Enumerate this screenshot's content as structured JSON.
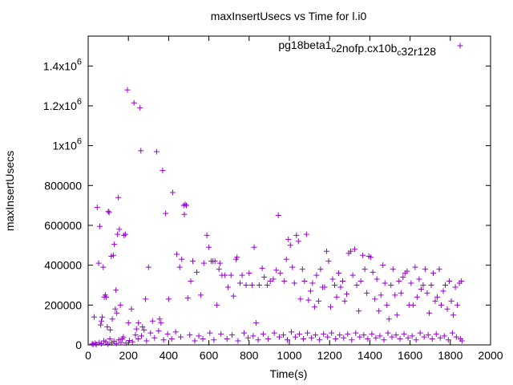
{
  "chart_data": {
    "type": "scatter",
    "title": "maxInsertUsecs vs Time for l.i0",
    "xlabel": "Time(s)",
    "ylabel": "maxInsertUsecs",
    "xlim": [
      0,
      2000
    ],
    "ylim": [
      0,
      1550000
    ],
    "grid": false,
    "legend_position": "top-right",
    "x_ticks": [
      {
        "value": 0,
        "label": "0"
      },
      {
        "value": 200,
        "label": "200"
      },
      {
        "value": 400,
        "label": "400"
      },
      {
        "value": 600,
        "label": "600"
      },
      {
        "value": 800,
        "label": "800"
      },
      {
        "value": 1000,
        "label": "1000"
      },
      {
        "value": 1200,
        "label": "1200"
      },
      {
        "value": 1400,
        "label": "1400"
      },
      {
        "value": 1600,
        "label": "1600"
      },
      {
        "value": 1800,
        "label": "1800"
      },
      {
        "value": 2000,
        "label": "2000"
      }
    ],
    "y_ticks": [
      {
        "value": 0,
        "label": "0",
        "exp": ""
      },
      {
        "value": 200000,
        "label": "200000",
        "exp": ""
      },
      {
        "value": 400000,
        "label": "400000",
        "exp": ""
      },
      {
        "value": 600000,
        "label": "600000",
        "exp": ""
      },
      {
        "value": 800000,
        "label": "800000",
        "exp": ""
      },
      {
        "value": 1000000,
        "label": "1x10",
        "exp": "6"
      },
      {
        "value": 1200000,
        "label": "1.2x10",
        "exp": "6"
      },
      {
        "value": 1400000,
        "label": "1.4x10",
        "exp": "6"
      }
    ],
    "series": [
      {
        "name": "pg18beta1_o2nofp.cx10b_c32r128",
        "legend_parts": [
          {
            "text": "pg18beta1",
            "sub": false
          },
          {
            "text": "o",
            "sub": true
          },
          {
            "text": "2nofp.cx10b",
            "sub": false
          },
          {
            "text": "c",
            "sub": true
          },
          {
            "text": "32r128",
            "sub": false
          }
        ],
        "color": "#9400d3",
        "marker": "plus",
        "points": [
          [
            30,
            140000
          ],
          [
            45,
            690000
          ],
          [
            52,
            410000
          ],
          [
            58,
            595000
          ],
          [
            62,
            100000
          ],
          [
            66,
            120000
          ],
          [
            70,
            140000
          ],
          [
            75,
            390000
          ],
          [
            80,
            240000
          ],
          [
            85,
            250000
          ],
          [
            90,
            240000
          ],
          [
            95,
            90000
          ],
          [
            100,
            670000
          ],
          [
            104,
            665000
          ],
          [
            110,
            75000
          ],
          [
            115,
            445000
          ],
          [
            120,
            130000
          ],
          [
            125,
            450000
          ],
          [
            130,
            505000
          ],
          [
            135,
            180000
          ],
          [
            138,
            275000
          ],
          [
            142,
            160000
          ],
          [
            146,
            555000
          ],
          [
            150,
            740000
          ],
          [
            155,
            580000
          ],
          [
            160,
            200000
          ],
          [
            170,
            30000
          ],
          [
            178,
            550000
          ],
          [
            185,
            555000
          ],
          [
            195,
            1280000
          ],
          [
            200,
            110000
          ],
          [
            215,
            180000
          ],
          [
            228,
            1215000
          ],
          [
            240,
            80000
          ],
          [
            250,
            110000
          ],
          [
            258,
            1190000
          ],
          [
            262,
            975000
          ],
          [
            270,
            90000
          ],
          [
            278,
            75000
          ],
          [
            285,
            230000
          ],
          [
            300,
            390000
          ],
          [
            320,
            120000
          ],
          [
            340,
            970000
          ],
          [
            355,
            130000
          ],
          [
            362,
            110000
          ],
          [
            370,
            875000
          ],
          [
            385,
            660000
          ],
          [
            400,
            230000
          ],
          [
            420,
            765000
          ],
          [
            440,
            455000
          ],
          [
            455,
            390000
          ],
          [
            465,
            430000
          ],
          [
            475,
            700000
          ],
          [
            478,
            655000
          ],
          [
            482,
            705000
          ],
          [
            488,
            700000
          ],
          [
            495,
            235000
          ],
          [
            510,
            320000
          ],
          [
            520,
            420000
          ],
          [
            540,
            365000
          ],
          [
            560,
            250000
          ],
          [
            575,
            410000
          ],
          [
            590,
            550000
          ],
          [
            600,
            490000
          ],
          [
            612,
            420000
          ],
          [
            620,
            420000
          ],
          [
            630,
            420000
          ],
          [
            640,
            200000
          ],
          [
            650,
            380000
          ],
          [
            655,
            410000
          ],
          [
            665,
            350000
          ],
          [
            680,
            350000
          ],
          [
            695,
            290000
          ],
          [
            710,
            350000
          ],
          [
            722,
            245000
          ],
          [
            735,
            430000
          ],
          [
            740,
            440000
          ],
          [
            755,
            310000
          ],
          [
            765,
            350000
          ],
          [
            785,
            300000
          ],
          [
            800,
            360000
          ],
          [
            815,
            300000
          ],
          [
            825,
            490000
          ],
          [
            835,
            110000
          ],
          [
            850,
            300000
          ],
          [
            865,
            385000
          ],
          [
            875,
            340000
          ],
          [
            890,
            300000
          ],
          [
            905,
            320000
          ],
          [
            920,
            330000
          ],
          [
            935,
            375000
          ],
          [
            945,
            650000
          ],
          [
            955,
            360000
          ],
          [
            975,
            320000
          ],
          [
            985,
            430000
          ],
          [
            995,
            530000
          ],
          [
            1005,
            500000
          ],
          [
            1015,
            390000
          ],
          [
            1025,
            310000
          ],
          [
            1035,
            550000
          ],
          [
            1045,
            520000
          ],
          [
            1055,
            230000
          ],
          [
            1065,
            380000
          ],
          [
            1075,
            320000
          ],
          [
            1085,
            555000
          ],
          [
            1095,
            225000
          ],
          [
            1105,
            270000
          ],
          [
            1115,
            310000
          ],
          [
            1125,
            190000
          ],
          [
            1135,
            350000
          ],
          [
            1145,
            220000
          ],
          [
            1155,
            380000
          ],
          [
            1165,
            290000
          ],
          [
            1175,
            290000
          ],
          [
            1185,
            470000
          ],
          [
            1195,
            420000
          ],
          [
            1205,
            190000
          ],
          [
            1215,
            330000
          ],
          [
            1225,
            300000
          ],
          [
            1235,
            240000
          ],
          [
            1245,
            360000
          ],
          [
            1255,
            290000
          ],
          [
            1265,
            320000
          ],
          [
            1275,
            220000
          ],
          [
            1285,
            255000
          ],
          [
            1295,
            460000
          ],
          [
            1305,
            470000
          ],
          [
            1315,
            350000
          ],
          [
            1325,
            480000
          ],
          [
            1335,
            300000
          ],
          [
            1345,
            170000
          ],
          [
            1355,
            320000
          ],
          [
            1365,
            450000
          ],
          [
            1375,
            380000
          ],
          [
            1385,
            260000
          ],
          [
            1395,
            445000
          ],
          [
            1405,
            440000
          ],
          [
            1415,
            365000
          ],
          [
            1425,
            230000
          ],
          [
            1435,
            330000
          ],
          [
            1445,
            170000
          ],
          [
            1455,
            250000
          ],
          [
            1465,
            400000
          ],
          [
            1475,
            310000
          ],
          [
            1485,
            200000
          ],
          [
            1495,
            130000
          ],
          [
            1505,
            300000
          ],
          [
            1515,
            380000
          ],
          [
            1525,
            250000
          ],
          [
            1535,
            150000
          ],
          [
            1545,
            320000
          ],
          [
            1555,
            260000
          ],
          [
            1565,
            340000
          ],
          [
            1575,
            360000
          ],
          [
            1585,
            370000
          ],
          [
            1595,
            200000
          ],
          [
            1605,
            310000
          ],
          [
            1615,
            200000
          ],
          [
            1625,
            390000
          ],
          [
            1635,
            240000
          ],
          [
            1645,
            330000
          ],
          [
            1655,
            280000
          ],
          [
            1665,
            300000
          ],
          [
            1675,
            380000
          ],
          [
            1685,
            260000
          ],
          [
            1695,
            160000
          ],
          [
            1705,
            300000
          ],
          [
            1715,
            360000
          ],
          [
            1725,
            220000
          ],
          [
            1735,
            240000
          ],
          [
            1745,
            380000
          ],
          [
            1755,
            200000
          ],
          [
            1765,
            270000
          ],
          [
            1775,
            300000
          ],
          [
            1785,
            180000
          ],
          [
            1795,
            320000
          ],
          [
            1805,
            220000
          ],
          [
            1815,
            150000
          ],
          [
            1825,
            290000
          ],
          [
            1835,
            200000
          ],
          [
            1845,
            310000
          ],
          [
            1855,
            320000
          ],
          [
            20,
            5000
          ],
          [
            25,
            3000
          ],
          [
            35,
            8000
          ],
          [
            40,
            2000
          ],
          [
            55,
            12000
          ],
          [
            65,
            6000
          ],
          [
            78,
            20000
          ],
          [
            88,
            15000
          ],
          [
            98,
            4000
          ],
          [
            108,
            30000
          ],
          [
            118,
            10000
          ],
          [
            128,
            18000
          ],
          [
            140,
            7000
          ],
          [
            152,
            25000
          ],
          [
            163,
            12000
          ],
          [
            175,
            40000
          ],
          [
            188,
            9000
          ],
          [
            205,
            22000
          ],
          [
            220,
            15000
          ],
          [
            235,
            50000
          ],
          [
            248,
            30000
          ],
          [
            265,
            45000
          ],
          [
            290,
            20000
          ],
          [
            310,
            60000
          ],
          [
            330,
            35000
          ],
          [
            350,
            70000
          ],
          [
            375,
            25000
          ],
          [
            395,
            55000
          ],
          [
            415,
            30000
          ],
          [
            435,
            65000
          ],
          [
            460,
            40000
          ],
          [
            505,
            50000
          ],
          [
            530,
            20000
          ],
          [
            550,
            45000
          ],
          [
            570,
            30000
          ],
          [
            605,
            60000
          ],
          [
            625,
            25000
          ],
          [
            660,
            55000
          ],
          [
            690,
            30000
          ],
          [
            715,
            50000
          ],
          [
            745,
            20000
          ],
          [
            775,
            60000
          ],
          [
            795,
            35000
          ],
          [
            820,
            45000
          ],
          [
            845,
            25000
          ],
          [
            870,
            55000
          ],
          [
            895,
            30000
          ],
          [
            925,
            60000
          ],
          [
            950,
            40000
          ],
          [
            970,
            50000
          ],
          [
            990,
            25000
          ],
          [
            1010,
            65000
          ],
          [
            1030,
            40000
          ],
          [
            1050,
            55000
          ],
          [
            1070,
            30000
          ],
          [
            1090,
            60000
          ],
          [
            1110,
            35000
          ],
          [
            1130,
            50000
          ],
          [
            1150,
            25000
          ],
          [
            1170,
            55000
          ],
          [
            1190,
            40000
          ],
          [
            1210,
            60000
          ],
          [
            1230,
            30000
          ],
          [
            1250,
            50000
          ],
          [
            1270,
            35000
          ],
          [
            1290,
            55000
          ],
          [
            1310,
            25000
          ],
          [
            1330,
            60000
          ],
          [
            1350,
            40000
          ],
          [
            1370,
            50000
          ],
          [
            1390,
            30000
          ],
          [
            1410,
            55000
          ],
          [
            1430,
            35000
          ],
          [
            1450,
            45000
          ],
          [
            1470,
            25000
          ],
          [
            1490,
            60000
          ],
          [
            1510,
            40000
          ],
          [
            1530,
            50000
          ],
          [
            1550,
            30000
          ],
          [
            1570,
            55000
          ],
          [
            1590,
            35000
          ],
          [
            1610,
            45000
          ],
          [
            1630,
            25000
          ],
          [
            1650,
            60000
          ],
          [
            1670,
            40000
          ],
          [
            1690,
            50000
          ],
          [
            1710,
            30000
          ],
          [
            1730,
            55000
          ],
          [
            1750,
            35000
          ],
          [
            1770,
            45000
          ],
          [
            1790,
            25000
          ],
          [
            1810,
            60000
          ],
          [
            1830,
            40000
          ],
          [
            1850,
            30000
          ],
          [
            1858,
            20000
          ]
        ]
      }
    ]
  }
}
